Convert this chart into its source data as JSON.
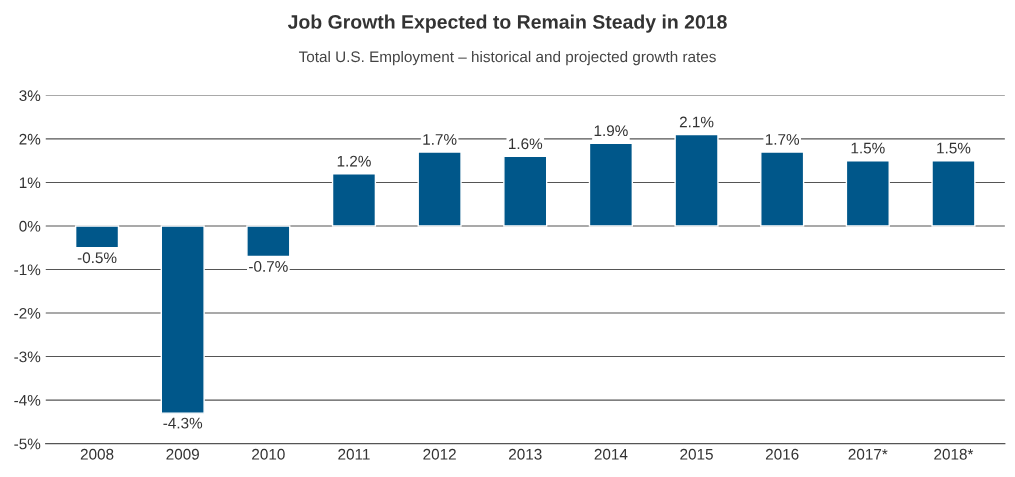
{
  "chart_data": {
    "type": "bar",
    "title": "Job Growth Expected to Remain Steady in 2018",
    "subtitle": "Total U.S. Employment – historical and projected growth rates",
    "categories": [
      "2008",
      "2009",
      "2010",
      "2011",
      "2012",
      "2013",
      "2014",
      "2015",
      "2016",
      "2017*",
      "2018*"
    ],
    "values": [
      -0.5,
      -4.3,
      -0.7,
      1.2,
      1.7,
      1.6,
      1.9,
      2.1,
      1.7,
      1.5,
      1.5
    ],
    "value_labels": [
      "-0.5%",
      "-4.3%",
      "-0.7%",
      "1.2%",
      "1.7%",
      "1.6%",
      "1.9%",
      "2.1%",
      "1.7%",
      "1.5%",
      "1.5%"
    ],
    "color": "#00578a",
    "ylim": [
      -5,
      3
    ],
    "yticks": [
      {
        "value": -5,
        "label": "-5%"
      },
      {
        "value": -4,
        "label": "-4%"
      },
      {
        "value": -3,
        "label": "-3%"
      },
      {
        "value": -2,
        "label": "-2%"
      },
      {
        "value": -1,
        "label": "-1%"
      },
      {
        "value": 0,
        "label": "0%"
      },
      {
        "value": 1,
        "label": "1%"
      },
      {
        "value": 2,
        "label": "2%"
      },
      {
        "value": 3,
        "label": "3%"
      }
    ],
    "grid": "y"
  }
}
